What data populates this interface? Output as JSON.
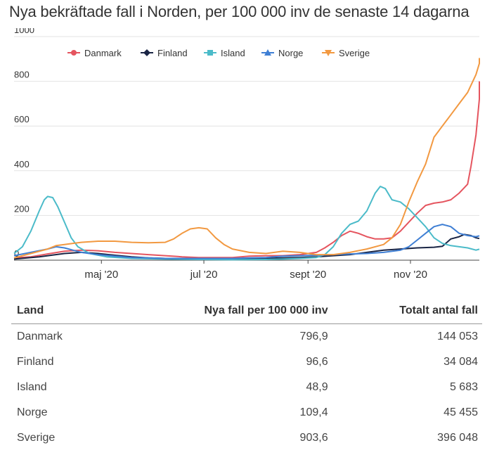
{
  "title": "Nya bekräftade fall i Norden, per 100 000 inv de senaste 14 dagarna",
  "chart_data": {
    "type": "line",
    "title": "Nya bekräftade fall i Norden, per 100 000 inv de senaste 14 dagarna",
    "y_ticks": [
      "0",
      "200",
      "400",
      "600",
      "800",
      "1000"
    ],
    "ylim": [
      0,
      1000
    ],
    "x_ticks": [
      {
        "label": "maj '20",
        "day": 122
      },
      {
        "label": "jul '20",
        "day": 183
      },
      {
        "label": "sept '20",
        "day": 245
      },
      {
        "label": "nov '20",
        "day": 306
      }
    ],
    "xlim_day_of_year": [
      70,
      347
    ],
    "grid": true,
    "legend_position": "top",
    "series": [
      {
        "name": "Danmark",
        "color": "#e5555f",
        "marker": "circle",
        "points": [
          [
            70,
            10
          ],
          [
            80,
            15
          ],
          [
            90,
            28
          ],
          [
            100,
            40
          ],
          [
            110,
            45
          ],
          [
            120,
            42
          ],
          [
            130,
            35
          ],
          [
            140,
            30
          ],
          [
            150,
            25
          ],
          [
            160,
            20
          ],
          [
            170,
            15
          ],
          [
            180,
            12
          ],
          [
            190,
            12
          ],
          [
            200,
            12
          ],
          [
            210,
            18
          ],
          [
            220,
            20
          ],
          [
            230,
            20
          ],
          [
            240,
            25
          ],
          [
            250,
            35
          ],
          [
            255,
            55
          ],
          [
            260,
            80
          ],
          [
            265,
            110
          ],
          [
            270,
            130
          ],
          [
            275,
            120
          ],
          [
            280,
            105
          ],
          [
            285,
            95
          ],
          [
            290,
            95
          ],
          [
            295,
            100
          ],
          [
            300,
            130
          ],
          [
            305,
            170
          ],
          [
            310,
            210
          ],
          [
            315,
            245
          ],
          [
            320,
            255
          ],
          [
            325,
            260
          ],
          [
            330,
            270
          ],
          [
            335,
            300
          ],
          [
            340,
            340
          ],
          [
            342,
            420
          ],
          [
            345,
            560
          ],
          [
            347,
            720
          ],
          [
            350,
            800
          ]
        ]
      },
      {
        "name": "Finland",
        "color": "#1a2545",
        "marker": "diamond",
        "points": [
          [
            70,
            5
          ],
          [
            85,
            15
          ],
          [
            100,
            30
          ],
          [
            110,
            35
          ],
          [
            120,
            30
          ],
          [
            130,
            22
          ],
          [
            140,
            15
          ],
          [
            150,
            10
          ],
          [
            160,
            8
          ],
          [
            170,
            6
          ],
          [
            180,
            5
          ],
          [
            190,
            5
          ],
          [
            200,
            5
          ],
          [
            210,
            6
          ],
          [
            220,
            8
          ],
          [
            230,
            10
          ],
          [
            240,
            12
          ],
          [
            250,
            15
          ],
          [
            260,
            20
          ],
          [
            270,
            25
          ],
          [
            280,
            35
          ],
          [
            290,
            45
          ],
          [
            300,
            50
          ],
          [
            310,
            55
          ],
          [
            320,
            58
          ],
          [
            325,
            62
          ],
          [
            330,
            95
          ],
          [
            335,
            105
          ],
          [
            338,
            115
          ],
          [
            342,
            110
          ],
          [
            345,
            100
          ],
          [
            350,
            97
          ]
        ]
      },
      {
        "name": "Island",
        "color": "#4bbbc9",
        "marker": "square",
        "points": [
          [
            70,
            30
          ],
          [
            75,
            60
          ],
          [
            80,
            130
          ],
          [
            85,
            220
          ],
          [
            88,
            270
          ],
          [
            90,
            285
          ],
          [
            93,
            280
          ],
          [
            96,
            240
          ],
          [
            100,
            170
          ],
          [
            104,
            100
          ],
          [
            108,
            60
          ],
          [
            115,
            30
          ],
          [
            125,
            15
          ],
          [
            140,
            8
          ],
          [
            160,
            5
          ],
          [
            180,
            3
          ],
          [
            200,
            2
          ],
          [
            220,
            3
          ],
          [
            230,
            5
          ],
          [
            240,
            8
          ],
          [
            250,
            12
          ],
          [
            255,
            25
          ],
          [
            260,
            60
          ],
          [
            265,
            120
          ],
          [
            270,
            160
          ],
          [
            275,
            175
          ],
          [
            280,
            220
          ],
          [
            285,
            300
          ],
          [
            288,
            330
          ],
          [
            291,
            320
          ],
          [
            295,
            270
          ],
          [
            300,
            260
          ],
          [
            305,
            230
          ],
          [
            310,
            190
          ],
          [
            315,
            150
          ],
          [
            320,
            100
          ],
          [
            325,
            75
          ],
          [
            330,
            65
          ],
          [
            335,
            60
          ],
          [
            340,
            55
          ],
          [
            345,
            45
          ],
          [
            350,
            49
          ]
        ]
      },
      {
        "name": "Norge",
        "color": "#3f7fd4",
        "marker": "triangle",
        "points": [
          [
            70,
            20
          ],
          [
            80,
            35
          ],
          [
            90,
            50
          ],
          [
            95,
            60
          ],
          [
            100,
            55
          ],
          [
            105,
            45
          ],
          [
            110,
            35
          ],
          [
            120,
            25
          ],
          [
            130,
            18
          ],
          [
            140,
            12
          ],
          [
            150,
            10
          ],
          [
            160,
            8
          ],
          [
            170,
            8
          ],
          [
            180,
            8
          ],
          [
            190,
            8
          ],
          [
            200,
            8
          ],
          [
            210,
            10
          ],
          [
            220,
            12
          ],
          [
            230,
            18
          ],
          [
            240,
            20
          ],
          [
            250,
            22
          ],
          [
            260,
            25
          ],
          [
            270,
            28
          ],
          [
            280,
            30
          ],
          [
            290,
            35
          ],
          [
            300,
            45
          ],
          [
            305,
            60
          ],
          [
            310,
            90
          ],
          [
            315,
            120
          ],
          [
            320,
            150
          ],
          [
            325,
            160
          ],
          [
            330,
            150
          ],
          [
            335,
            120
          ],
          [
            340,
            110
          ],
          [
            345,
            105
          ],
          [
            350,
            109
          ]
        ]
      },
      {
        "name": "Sverige",
        "color": "#f29941",
        "marker": "triangle-down",
        "points": [
          [
            70,
            10
          ],
          [
            80,
            30
          ],
          [
            90,
            50
          ],
          [
            95,
            65
          ],
          [
            100,
            70
          ],
          [
            105,
            75
          ],
          [
            110,
            80
          ],
          [
            120,
            85
          ],
          [
            130,
            85
          ],
          [
            140,
            80
          ],
          [
            150,
            78
          ],
          [
            160,
            80
          ],
          [
            165,
            95
          ],
          [
            170,
            120
          ],
          [
            175,
            140
          ],
          [
            180,
            145
          ],
          [
            185,
            140
          ],
          [
            190,
            100
          ],
          [
            195,
            70
          ],
          [
            200,
            50
          ],
          [
            210,
            35
          ],
          [
            220,
            30
          ],
          [
            230,
            40
          ],
          [
            240,
            35
          ],
          [
            250,
            25
          ],
          [
            260,
            25
          ],
          [
            270,
            35
          ],
          [
            280,
            50
          ],
          [
            290,
            70
          ],
          [
            295,
            100
          ],
          [
            300,
            160
          ],
          [
            305,
            260
          ],
          [
            310,
            350
          ],
          [
            315,
            430
          ],
          [
            320,
            550
          ],
          [
            325,
            600
          ],
          [
            330,
            650
          ],
          [
            335,
            700
          ],
          [
            340,
            750
          ],
          [
            345,
            830
          ],
          [
            348,
            880
          ],
          [
            350,
            904
          ]
        ]
      }
    ]
  },
  "table": {
    "headers": [
      "Land",
      "Nya fall per 100 000 inv",
      "Totalt antal fall"
    ],
    "rows": [
      [
        "Danmark",
        "796,9",
        "144 053"
      ],
      [
        "Finland",
        "96,6",
        "34 084"
      ],
      [
        "Island",
        "48,9",
        "5 683"
      ],
      [
        "Norge",
        "109,4",
        "45 455"
      ],
      [
        "Sverige",
        "903,6",
        "396 048"
      ]
    ],
    "row_colors": [
      "#ffffff",
      "#ffffff",
      "#ffffff",
      "#ffffff",
      "#ffffff"
    ]
  }
}
